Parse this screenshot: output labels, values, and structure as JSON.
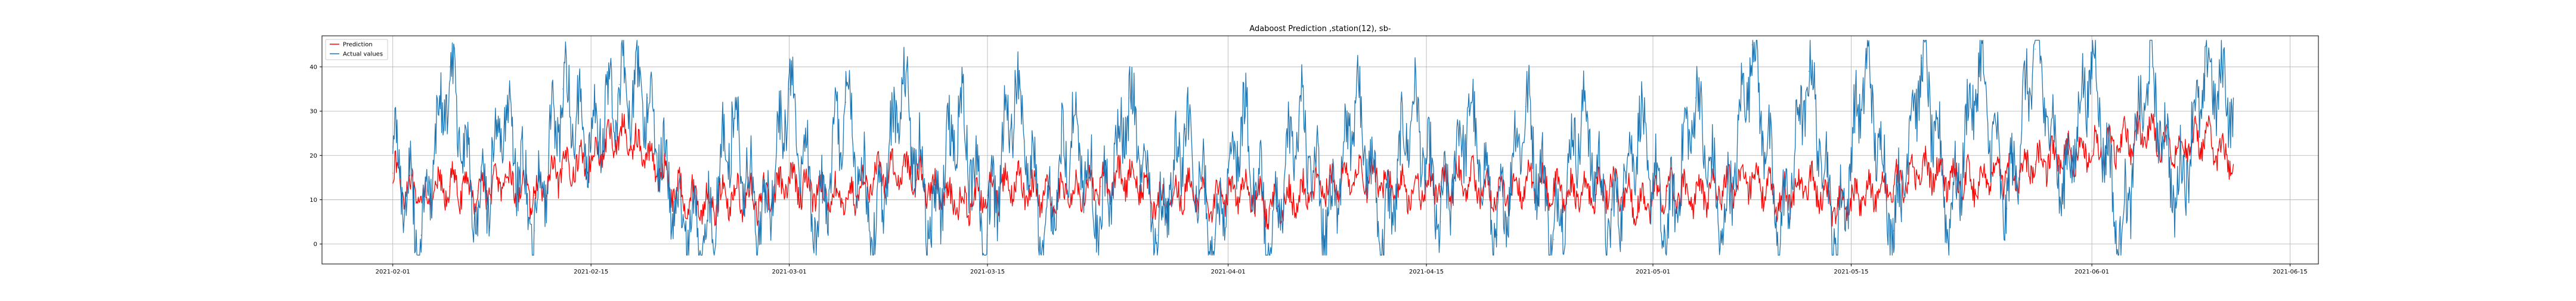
{
  "chart_data": {
    "type": "line",
    "title": "Adaboost Prediction ,station(12), sb-",
    "xlabel": "",
    "ylabel": "",
    "x_axis": {
      "type": "date",
      "range": [
        "2021-01-27",
        "2021-06-17"
      ],
      "ticks": [
        "2021-02-01",
        "2021-02-15",
        "2021-03-01",
        "2021-03-15",
        "2021-04-01",
        "2021-04-15",
        "2021-05-01",
        "2021-05-15",
        "2021-06-01",
        "2021-06-15"
      ]
    },
    "y_axis": {
      "range": [
        -4.5,
        47
      ],
      "ticks": [
        0,
        10,
        20,
        30,
        40
      ]
    },
    "grid": true,
    "legend_position": "top-left",
    "series": [
      {
        "name": "Prediction",
        "color": "#ff0000",
        "x": [
          "2021-02-01",
          "2021-02-03",
          "2021-02-05",
          "2021-02-07",
          "2021-02-09",
          "2021-02-11",
          "2021-02-13",
          "2021-02-15",
          "2021-02-17",
          "2021-02-19",
          "2021-02-21",
          "2021-02-23",
          "2021-02-25",
          "2021-02-27",
          "2021-03-01",
          "2021-03-03",
          "2021-03-05",
          "2021-03-07",
          "2021-03-09",
          "2021-03-11",
          "2021-03-13",
          "2021-03-15",
          "2021-03-17",
          "2021-03-19",
          "2021-03-21",
          "2021-03-23",
          "2021-03-25",
          "2021-03-27",
          "2021-03-29",
          "2021-03-31",
          "2021-04-02",
          "2021-04-04",
          "2021-04-06",
          "2021-04-08",
          "2021-04-10",
          "2021-04-12",
          "2021-04-14",
          "2021-04-16",
          "2021-04-18",
          "2021-04-20",
          "2021-04-22",
          "2021-04-24",
          "2021-04-26",
          "2021-04-28",
          "2021-04-30",
          "2021-05-02",
          "2021-05-04",
          "2021-05-06",
          "2021-05-08",
          "2021-05-10",
          "2021-05-12",
          "2021-05-14",
          "2021-05-16",
          "2021-05-18",
          "2021-05-20",
          "2021-05-22",
          "2021-05-24",
          "2021-05-26",
          "2021-05-28",
          "2021-05-30",
          "2021-06-01",
          "2021-06-03",
          "2021-06-05",
          "2021-06-07",
          "2021-06-09",
          "2021-06-11"
        ],
        "values": [
          16,
          10,
          13,
          12,
          14,
          11,
          17,
          19,
          25,
          20,
          12,
          9,
          11,
          10,
          14,
          12,
          10,
          15,
          17,
          13,
          9,
          11,
          14,
          10,
          12,
          13,
          16,
          9,
          12,
          10,
          13,
          8,
          11,
          13,
          16,
          14,
          12,
          13,
          15,
          10,
          14,
          12,
          11,
          13,
          9,
          12,
          11,
          13,
          15,
          10,
          14,
          8,
          11,
          13,
          17,
          15,
          14,
          16,
          18,
          20,
          21,
          23,
          25,
          22,
          24,
          18
        ]
      },
      {
        "name": "Actual values",
        "color": "#1f77b4",
        "x": [
          "2021-02-01",
          "2021-02-03",
          "2021-02-05",
          "2021-02-07",
          "2021-02-09",
          "2021-02-11",
          "2021-02-13",
          "2021-02-15",
          "2021-02-17",
          "2021-02-19",
          "2021-02-21",
          "2021-02-23",
          "2021-02-25",
          "2021-02-27",
          "2021-03-01",
          "2021-03-03",
          "2021-03-05",
          "2021-03-07",
          "2021-03-09",
          "2021-03-11",
          "2021-03-13",
          "2021-03-15",
          "2021-03-17",
          "2021-03-19",
          "2021-03-21",
          "2021-03-23",
          "2021-03-25",
          "2021-03-27",
          "2021-03-29",
          "2021-03-31",
          "2021-04-02",
          "2021-04-04",
          "2021-04-06",
          "2021-04-08",
          "2021-04-10",
          "2021-04-12",
          "2021-04-14",
          "2021-04-16",
          "2021-04-18",
          "2021-04-20",
          "2021-04-22",
          "2021-04-24",
          "2021-04-26",
          "2021-04-28",
          "2021-04-30",
          "2021-05-02",
          "2021-05-04",
          "2021-05-06",
          "2021-05-08",
          "2021-05-10",
          "2021-05-12",
          "2021-05-14",
          "2021-05-16",
          "2021-05-18",
          "2021-05-20",
          "2021-05-22",
          "2021-05-24",
          "2021-05-26",
          "2021-05-28",
          "2021-05-30",
          "2021-06-01",
          "2021-06-03",
          "2021-06-05",
          "2021-06-07",
          "2021-06-09",
          "2021-06-11"
        ],
        "values": [
          22,
          2,
          40,
          5,
          30,
          3,
          35,
          24,
          36,
          33,
          7,
          1,
          28,
          2,
          35,
          4,
          32,
          1,
          37,
          3,
          30,
          2,
          36,
          1,
          28,
          5,
          33,
          2,
          26,
          1,
          29,
          0,
          30,
          4,
          33,
          1,
          32,
          5,
          30,
          2,
          31,
          1,
          30,
          3,
          27,
          2,
          33,
          2,
          45,
          1,
          39,
          0,
          40,
          3,
          42,
          5,
          40,
          8,
          44,
          12,
          42,
          0,
          40,
          10,
          38,
          33
        ]
      }
    ]
  }
}
